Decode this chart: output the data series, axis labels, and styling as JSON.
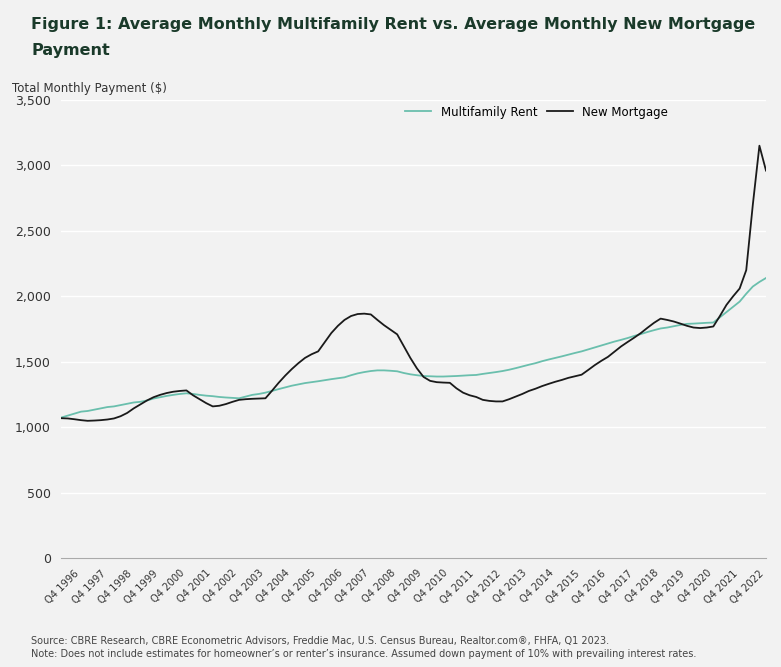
{
  "title_line1": "Figure 1: Average Monthly Multifamily Rent vs. Average Monthly New Mortgage",
  "title_line2": "Payment",
  "ylabel": "Total Monthly Payment ($)",
  "ylim": [
    0,
    3500
  ],
  "yticks": [
    0,
    500,
    1000,
    1500,
    2000,
    2500,
    3000,
    3500
  ],
  "source_text": "Source: CBRE Research, CBRE Econometric Advisors, Freddie Mac, U.S. Census Bureau, Realtor.com®, FHFA, Q1 2023.",
  "note_text": "Note: Does not include estimates for homeowner’s or renter’s insurance. Assumed down payment of 10% with prevailing interest rates.",
  "rent_color": "#6abfad",
  "mortgage_color": "#1a1a1a",
  "background_color": "#f2f2f2",
  "title_color": "#1a3a2a",
  "legend_rent": "Multifamily Rent",
  "legend_mortgage": "New Mortgage",
  "tick_labels": [
    "Q4 1996",
    "Q4 1997",
    "Q4 1998",
    "Q4 1999",
    "Q4 2000",
    "Q4 2001",
    "Q4 2002",
    "Q4 2003",
    "Q4 2004",
    "Q4 2005",
    "Q4 2006",
    "Q4 2007",
    "Q4 2008",
    "Q4 2009",
    "Q4 2010",
    "Q4 2011",
    "Q4 2012",
    "Q4 2013",
    "Q4 2014",
    "Q4 2015",
    "Q4 2016",
    "Q4 2017",
    "Q4 2018",
    "Q4 2019",
    "Q4 2020",
    "Q4 2021",
    "Q4 2022"
  ],
  "multifamily_rent_quarterly": [
    1075,
    1090,
    1105,
    1120,
    1125,
    1135,
    1145,
    1155,
    1160,
    1170,
    1180,
    1190,
    1195,
    1205,
    1220,
    1230,
    1240,
    1248,
    1255,
    1260,
    1255,
    1248,
    1242,
    1238,
    1232,
    1228,
    1225,
    1222,
    1235,
    1248,
    1255,
    1265,
    1278,
    1292,
    1305,
    1318,
    1328,
    1338,
    1345,
    1352,
    1360,
    1368,
    1375,
    1382,
    1398,
    1412,
    1422,
    1430,
    1435,
    1435,
    1432,
    1428,
    1415,
    1405,
    1398,
    1392,
    1390,
    1388,
    1388,
    1390,
    1392,
    1395,
    1398,
    1400,
    1408,
    1415,
    1422,
    1430,
    1440,
    1452,
    1465,
    1478,
    1490,
    1505,
    1518,
    1530,
    1542,
    1555,
    1568,
    1580,
    1595,
    1610,
    1625,
    1640,
    1655,
    1668,
    1682,
    1698,
    1712,
    1728,
    1742,
    1755,
    1762,
    1772,
    1782,
    1790,
    1792,
    1795,
    1798,
    1800,
    1840,
    1880,
    1920,
    1960,
    2020,
    2075,
    2110,
    2140
  ],
  "new_mortgage_quarterly": [
    1070,
    1068,
    1062,
    1055,
    1050,
    1052,
    1055,
    1060,
    1068,
    1085,
    1110,
    1145,
    1175,
    1205,
    1230,
    1248,
    1262,
    1272,
    1278,
    1282,
    1245,
    1215,
    1185,
    1160,
    1165,
    1178,
    1195,
    1210,
    1215,
    1218,
    1220,
    1222,
    1280,
    1340,
    1395,
    1445,
    1490,
    1530,
    1558,
    1580,
    1650,
    1720,
    1775,
    1820,
    1850,
    1865,
    1868,
    1862,
    1820,
    1780,
    1745,
    1710,
    1620,
    1530,
    1450,
    1385,
    1355,
    1345,
    1342,
    1340,
    1298,
    1265,
    1245,
    1232,
    1210,
    1202,
    1198,
    1198,
    1215,
    1235,
    1255,
    1278,
    1295,
    1315,
    1332,
    1348,
    1362,
    1378,
    1390,
    1402,
    1438,
    1475,
    1508,
    1538,
    1578,
    1618,
    1652,
    1685,
    1720,
    1760,
    1798,
    1830,
    1820,
    1808,
    1792,
    1775,
    1762,
    1758,
    1762,
    1770,
    1850,
    1935,
    2000,
    2060,
    2200,
    2700,
    3150,
    2960
  ]
}
